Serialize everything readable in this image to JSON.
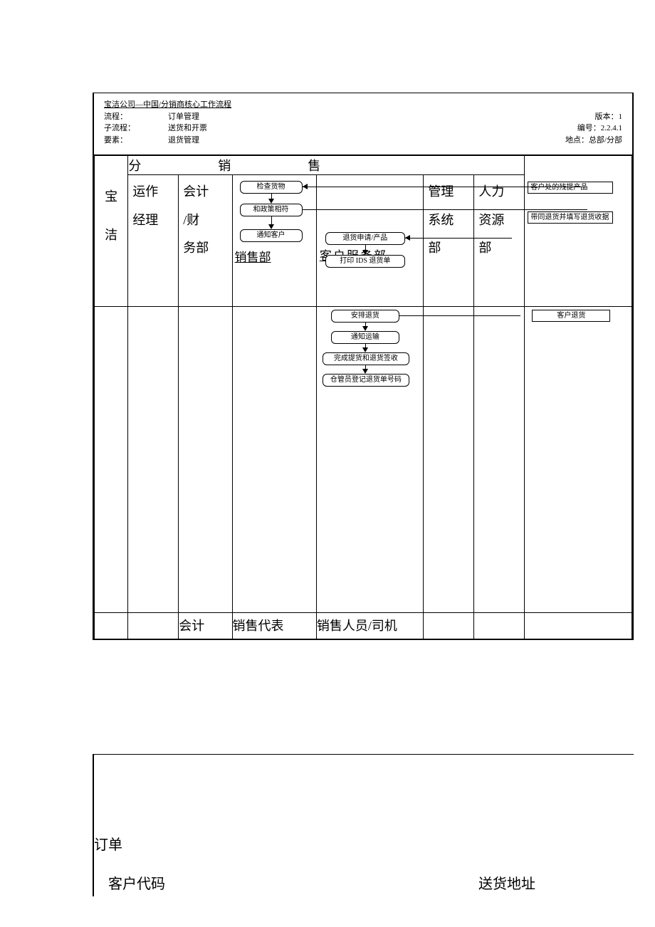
{
  "header": {
    "title": "宝洁公司—中国/分销商核心工作流程",
    "rows": [
      {
        "k": "流程：",
        "v": "订单管理",
        "rk": "版本：",
        "rv": "1"
      },
      {
        "k": "子流程：",
        "v": "送货和开票",
        "rk": "编号：",
        "rv": "2.2.4.1"
      },
      {
        "k": "要素：",
        "v": "退货管理",
        "rk": "地点：",
        "rv": "总部/分部"
      }
    ]
  },
  "lanes": {
    "baojie": "宝洁",
    "fenxiaoshou_top": "分　　销　　售",
    "ops": "运作经理",
    "acct": "会计/财务部",
    "sales": "销售部",
    "cs": "客户服务部",
    "mis": "管理系统部",
    "hr": "人力资源部",
    "cust_col": "客"
  },
  "nodes": {
    "n1": "检查货物",
    "n2": "和政策相符",
    "n3": "通知客户",
    "c1": "退货申请/产品",
    "c2": "打印 IDS 退货单",
    "c3": "安排退货",
    "c4": "通知运输",
    "c5": "完成提货和退货签收",
    "c6": "仓管员登记退货单号码",
    "r1": "客户处的残提产品",
    "r2": "带同退货并填写退货收据",
    "r3": "客户退货"
  },
  "style": {
    "node_border": "#000000",
    "node_radius": 6,
    "font_small": 10,
    "font_dept": 18
  },
  "footer": {
    "acct": "会计",
    "sales": "销售代表",
    "cs": "销售人员/司机"
  },
  "page2": {
    "l1": "订单",
    "l2a": "客户代码",
    "l2b": "送货地址"
  }
}
